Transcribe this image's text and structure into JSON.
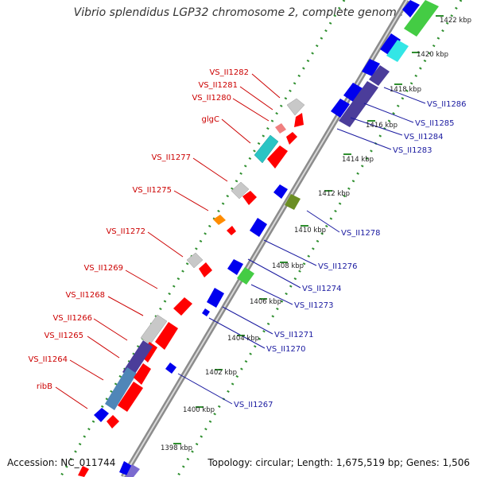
{
  "title": "Vibrio splendidus LGP32 chromosome 2, complete genome",
  "footer": {
    "accession": "Accession: NC_011744",
    "summary": "Topology: circular; Length: 1,675,519 bp; Genes: 1,506"
  },
  "colors": {
    "backbone": "#8c8c8c",
    "ticks": "#2f8f2f",
    "forward_label": "#cc0000",
    "reverse_label": "#1a1aa0",
    "cds_red": "#ff0000",
    "cds_blue": "#0000ee",
    "cds_gray": "#c8c8c8",
    "cds_pink": "#f08080",
    "cds_cyan": "#2bc4c4",
    "cds_aqua": "#33e6e6",
    "cds_green": "#44cc44",
    "cds_olive": "#6b8e23",
    "cds_orange": "#ff8c00",
    "cds_navy": "#4b3d9a",
    "cds_steel": "#4f86b8"
  },
  "kbp_labels": [
    {
      "text": "1398 kbp",
      "kbp": 1398
    },
    {
      "text": "1400 kbp",
      "kbp": 1400
    },
    {
      "text": "1402 kbp",
      "kbp": 1402
    },
    {
      "text": "1404 kbp",
      "kbp": 1404
    },
    {
      "text": "1406 kbp",
      "kbp": 1406
    },
    {
      "text": "1408 kbp",
      "kbp": 1408
    },
    {
      "text": "1410 kbp",
      "kbp": 1410
    },
    {
      "text": "1412 kbp",
      "kbp": 1412
    },
    {
      "text": "1414 kbp",
      "kbp": 1414
    },
    {
      "text": "1416 kbp",
      "kbp": 1416
    },
    {
      "text": "1418 kbp",
      "kbp": 1418
    },
    {
      "text": "1420 kbp",
      "kbp": 1420
    },
    {
      "text": "1422 kbp",
      "kbp": 1422
    }
  ],
  "forward_labels": [
    "VS_II1282",
    "VS_II1281",
    "VS_II1280",
    "glgC",
    "VS_II1277",
    "VS_II1275",
    "VS_II1272",
    "VS_II1269",
    "VS_II1268",
    "VS_II1266",
    "VS_II1265",
    "VS_II1264",
    "ribB"
  ],
  "reverse_labels": [
    "VS_II1286",
    "VS_II1285",
    "VS_II1284",
    "VS_II1283",
    "VS_II1278",
    "VS_II1276",
    "VS_II1274",
    "VS_II1273",
    "VS_II1271",
    "VS_II1270",
    "VS_II1267"
  ]
}
